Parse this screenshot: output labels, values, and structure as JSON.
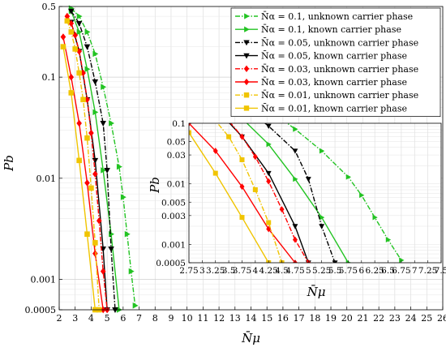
{
  "chart_data": {
    "type": "line",
    "y_scale": "log",
    "xlabel": "N̄μ",
    "ylabel": "Pb",
    "xlim": [
      2,
      26
    ],
    "ylim": [
      0.0005,
      0.5
    ],
    "x_ticks": [
      "2",
      "3",
      "4",
      "5",
      "6",
      "7",
      "8",
      "9",
      "10",
      "11",
      "12",
      "13",
      "14",
      "15",
      "16",
      "17",
      "18",
      "19",
      "20",
      "21",
      "22",
      "23",
      "24",
      "25",
      "26"
    ],
    "y_ticks": [
      "0.5",
      "0.1",
      "0.01",
      "0.001",
      "0.0005"
    ],
    "grid": true,
    "legend_position": "top-right",
    "series": [
      {
        "name": "N̄α = 0.1, unknown carrier phase",
        "color": "#22c322",
        "dash": "dashdot",
        "marker": "triangle-right",
        "x": [
          2.75,
          3.25,
          3.75,
          4.25,
          4.75,
          5.25,
          5.75,
          6.0,
          6.25,
          6.5,
          6.75
        ],
        "y": [
          0.48,
          0.4,
          0.28,
          0.17,
          0.08,
          0.035,
          0.013,
          0.0065,
          0.0028,
          0.0012,
          0.00055
        ]
      },
      {
        "name": "N̄α = 0.1, known carrier phase",
        "color": "#22c322",
        "dash": "solid",
        "marker": "triangle-right",
        "x": [
          2.75,
          3.25,
          3.75,
          4.25,
          4.75,
          5.25,
          5.75
        ],
        "y": [
          0.45,
          0.28,
          0.12,
          0.045,
          0.012,
          0.0028,
          0.0005
        ]
      },
      {
        "name": "N̄α = 0.05, unknown carrier phase",
        "color": "#000000",
        "dash": "dashdot",
        "marker": "triangle-down",
        "x": [
          2.75,
          3.25,
          3.75,
          4.25,
          4.75,
          5.0,
          5.25,
          5.5
        ],
        "y": [
          0.45,
          0.34,
          0.2,
          0.09,
          0.035,
          0.012,
          0.002,
          0.0005
        ]
      },
      {
        "name": "N̄α = 0.05, known carrier phase",
        "color": "#000000",
        "dash": "solid",
        "marker": "triangle-down",
        "x": [
          2.75,
          3.25,
          3.75,
          4.25,
          4.75,
          5.0
        ],
        "y": [
          0.35,
          0.18,
          0.06,
          0.015,
          0.002,
          0.0005
        ]
      },
      {
        "name": "N̄α = 0.03, unknown carrier phase",
        "color": "#ff0000",
        "dash": "dashdot",
        "marker": "diamond",
        "x": [
          2.5,
          2.75,
          3.0,
          3.25,
          3.5,
          3.75,
          4.0,
          4.25,
          4.5,
          4.75,
          5.0
        ],
        "y": [
          0.4,
          0.34,
          0.26,
          0.18,
          0.11,
          0.06,
          0.028,
          0.011,
          0.0038,
          0.0012,
          0.0005
        ]
      },
      {
        "name": "N̄α = 0.03, known carrier phase",
        "color": "#ff0000",
        "dash": "solid",
        "marker": "diamond",
        "x": [
          2.25,
          2.75,
          3.25,
          3.75,
          4.25,
          4.75
        ],
        "y": [
          0.25,
          0.1,
          0.035,
          0.009,
          0.0018,
          0.0005
        ]
      },
      {
        "name": "N̄α = 0.01, unknown carrier phase",
        "color": "#f0c400",
        "dash": "dashdot",
        "marker": "square",
        "x": [
          2.5,
          2.75,
          3.0,
          3.25,
          3.5,
          3.75,
          4.0,
          4.25,
          4.5
        ],
        "y": [
          0.36,
          0.28,
          0.19,
          0.11,
          0.06,
          0.025,
          0.008,
          0.0023,
          0.0005
        ]
      },
      {
        "name": "N̄α = 0.01, known carrier phase",
        "color": "#f0c400",
        "dash": "solid",
        "marker": "square",
        "x": [
          2.25,
          2.75,
          3.25,
          3.75,
          4.25
        ],
        "y": [
          0.2,
          0.07,
          0.015,
          0.0028,
          0.0005
        ]
      }
    ],
    "inset": {
      "xlim": [
        2.75,
        7.5
      ],
      "ylim": [
        0.0005,
        0.1
      ],
      "xlabel": "N̄μ",
      "ylabel": "Pb",
      "x_ticks": [
        "2.75",
        "3",
        "3.25",
        "3.5",
        "3.75",
        "4",
        "4.25",
        "4.5",
        "4.75",
        "5",
        "5.25",
        "5.5",
        "5.75",
        "6",
        "6.25",
        "6.5",
        "6.75",
        "7",
        "7.25",
        "7.5"
      ],
      "y_ticks": [
        "0.1",
        "0.05",
        "0.03",
        "0.01",
        "0.005",
        "0.003",
        "0.001",
        "0.0005"
      ]
    }
  }
}
